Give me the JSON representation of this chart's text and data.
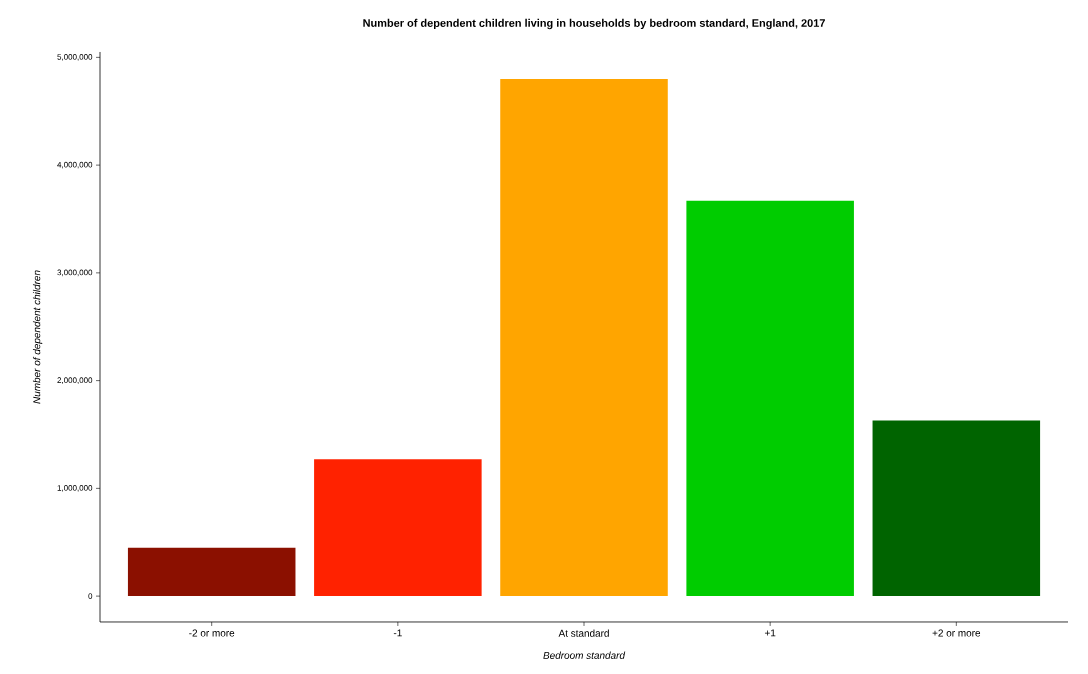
{
  "chart_data": {
    "type": "bar",
    "title": "Number of dependent children living in households by bedroom standard, England, 2017",
    "xlabel": "Bedroom standard",
    "ylabel": "Number of dependent children",
    "categories": [
      "-2 or more",
      "-1",
      "At standard",
      "+1",
      "+2 or more"
    ],
    "values": [
      450000,
      1270000,
      4800000,
      3670000,
      1630000
    ],
    "colors": [
      "#8b1000",
      "#ff2200",
      "#ffa500",
      "#00cc00",
      "#006400"
    ],
    "yticks": [
      0,
      {
        "value": 1000000,
        "label": "1,000,000"
      },
      {
        "value": 2000000,
        "label": "2,000,000"
      },
      {
        "value": 3000000,
        "label": "3,000,000"
      },
      {
        "value": 4000000,
        "label": "4,000,000"
      },
      {
        "value": 5000000,
        "label": "5,000,000"
      }
    ],
    "ylim": [
      -240000,
      5050000
    ]
  }
}
